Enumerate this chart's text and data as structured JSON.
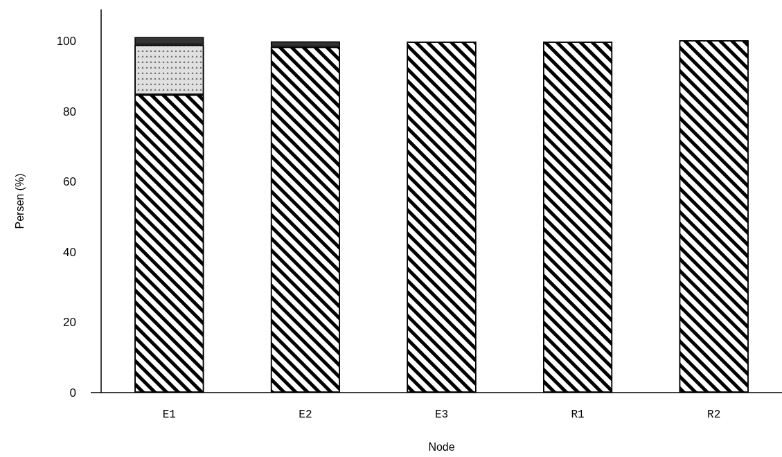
{
  "chart_data": {
    "type": "bar",
    "stacked": true,
    "xlabel": "Node",
    "ylabel": "Persen (%)",
    "categories": [
      "E1",
      "E2",
      "E3",
      "R1",
      "R2"
    ],
    "series": [
      {
        "color": "#ffffff",
        "values": [
          84.8,
          98.4,
          99.9,
          99.9,
          100.3
        ]
      },
      {
        "color": "#e0e0e0",
        "values": [
          14.2,
          null,
          null,
          null,
          null
        ]
      },
      {
        "color": "#333333",
        "values": [
          2.2,
          1.6,
          null,
          null,
          null
        ]
      }
    ],
    "ylim": [
      0,
      109
    ],
    "yticks": [
      0,
      20,
      40,
      60,
      80,
      100
    ],
    "grid": false
  }
}
